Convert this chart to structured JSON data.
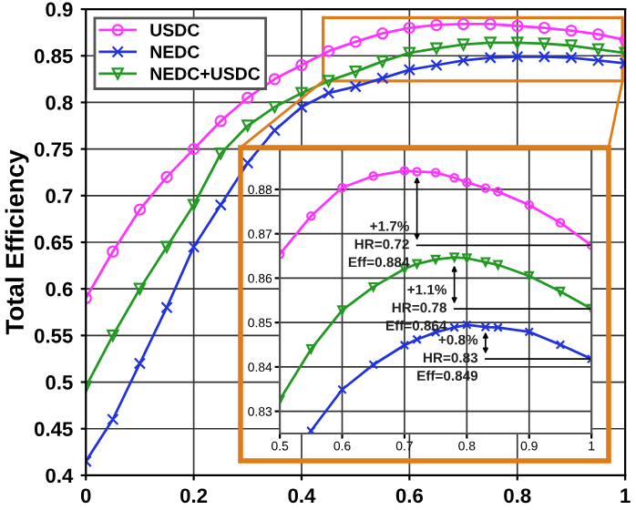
{
  "chart_data": [
    {
      "type": "line",
      "ylabel": "Total Efficiency",
      "xlim": [
        0,
        1
      ],
      "ylim": [
        0.4,
        0.9
      ],
      "xticks": [
        0,
        0.2,
        0.4,
        0.6,
        0.8,
        1
      ],
      "yticks": [
        0.4,
        0.45,
        0.5,
        0.55,
        0.6,
        0.65,
        0.7,
        0.75,
        0.8,
        0.85,
        0.9
      ],
      "grid": true,
      "legend": "top left",
      "x": [
        0,
        0.05,
        0.1,
        0.15,
        0.2,
        0.25,
        0.3,
        0.35,
        0.4,
        0.45,
        0.5,
        0.55,
        0.6,
        0.65,
        0.7,
        0.75,
        0.8,
        0.85,
        0.9,
        0.95,
        1
      ],
      "series": [
        {
          "name": "USDC",
          "color": "#ff33ff",
          "marker": "circle",
          "values": [
            0.59,
            0.64,
            0.685,
            0.72,
            0.75,
            0.78,
            0.805,
            0.825,
            0.84,
            0.855,
            0.865,
            0.874,
            0.88,
            0.883,
            0.884,
            0.884,
            0.882,
            0.88,
            0.877,
            0.873,
            0.867
          ]
        },
        {
          "name": "NEDC",
          "color": "#2233dd",
          "marker": "cross",
          "values": [
            0.415,
            0.46,
            0.52,
            0.58,
            0.645,
            0.69,
            0.735,
            0.77,
            0.795,
            0.81,
            0.817,
            0.826,
            0.835,
            0.84,
            0.845,
            0.848,
            0.849,
            0.849,
            0.848,
            0.845,
            0.842
          ]
        },
        {
          "name": "NEDC+USDC",
          "color": "#229922",
          "marker": "triangle",
          "values": [
            0.495,
            0.55,
            0.6,
            0.645,
            0.69,
            0.745,
            0.775,
            0.795,
            0.81,
            0.823,
            0.833,
            0.844,
            0.853,
            0.858,
            0.862,
            0.864,
            0.864,
            0.863,
            0.861,
            0.857,
            0.853
          ]
        }
      ]
    },
    {
      "type": "line",
      "xlim": [
        0.5,
        1
      ],
      "ylim": [
        0.825,
        0.889
      ],
      "xticks": [
        0.5,
        0.6,
        0.7,
        0.8,
        0.9,
        1
      ],
      "yticks": [
        0.83,
        0.84,
        0.85,
        0.86,
        0.87,
        0.88
      ],
      "grid": true,
      "x": [
        0.5,
        0.55,
        0.6,
        0.65,
        0.7,
        0.72,
        0.75,
        0.78,
        0.8,
        0.83,
        0.85,
        0.9,
        0.95,
        1
      ],
      "series": [
        {
          "color": "#ff33ff",
          "marker": "circle",
          "values": [
            0.8654,
            0.874,
            0.8804,
            0.883,
            0.8842,
            0.884,
            0.8838,
            0.8826,
            0.8816,
            0.8803,
            0.8795,
            0.8765,
            0.8725,
            0.8674
          ]
        },
        {
          "color": "#2233dd",
          "marker": "cross",
          "values": [
            null,
            0.8256,
            0.8349,
            0.8405,
            0.8449,
            0.8462,
            0.8478,
            0.8489,
            0.8495,
            0.849,
            0.8489,
            0.8479,
            0.845,
            0.8418
          ]
        },
        {
          "color": "#229922",
          "marker": "triangle",
          "values": [
            0.8326,
            0.844,
            0.8528,
            0.858,
            0.8621,
            0.8632,
            0.8642,
            0.8647,
            0.8645,
            0.8636,
            0.863,
            0.8605,
            0.857,
            0.8531
          ]
        }
      ],
      "annotations": [
        {
          "text": "+1.7%\nHR=0.72\nEff=0.884",
          "x": 0.72,
          "y": 0.884
        },
        {
          "text": "+0.8%\nHR=0.83\nEff=0.849",
          "x": 0.83,
          "y": 0.849
        },
        {
          "text": "+1.1%\nHR=0.78\nEff=0.864",
          "x": 0.78,
          "y": 0.864
        }
      ]
    }
  ]
}
